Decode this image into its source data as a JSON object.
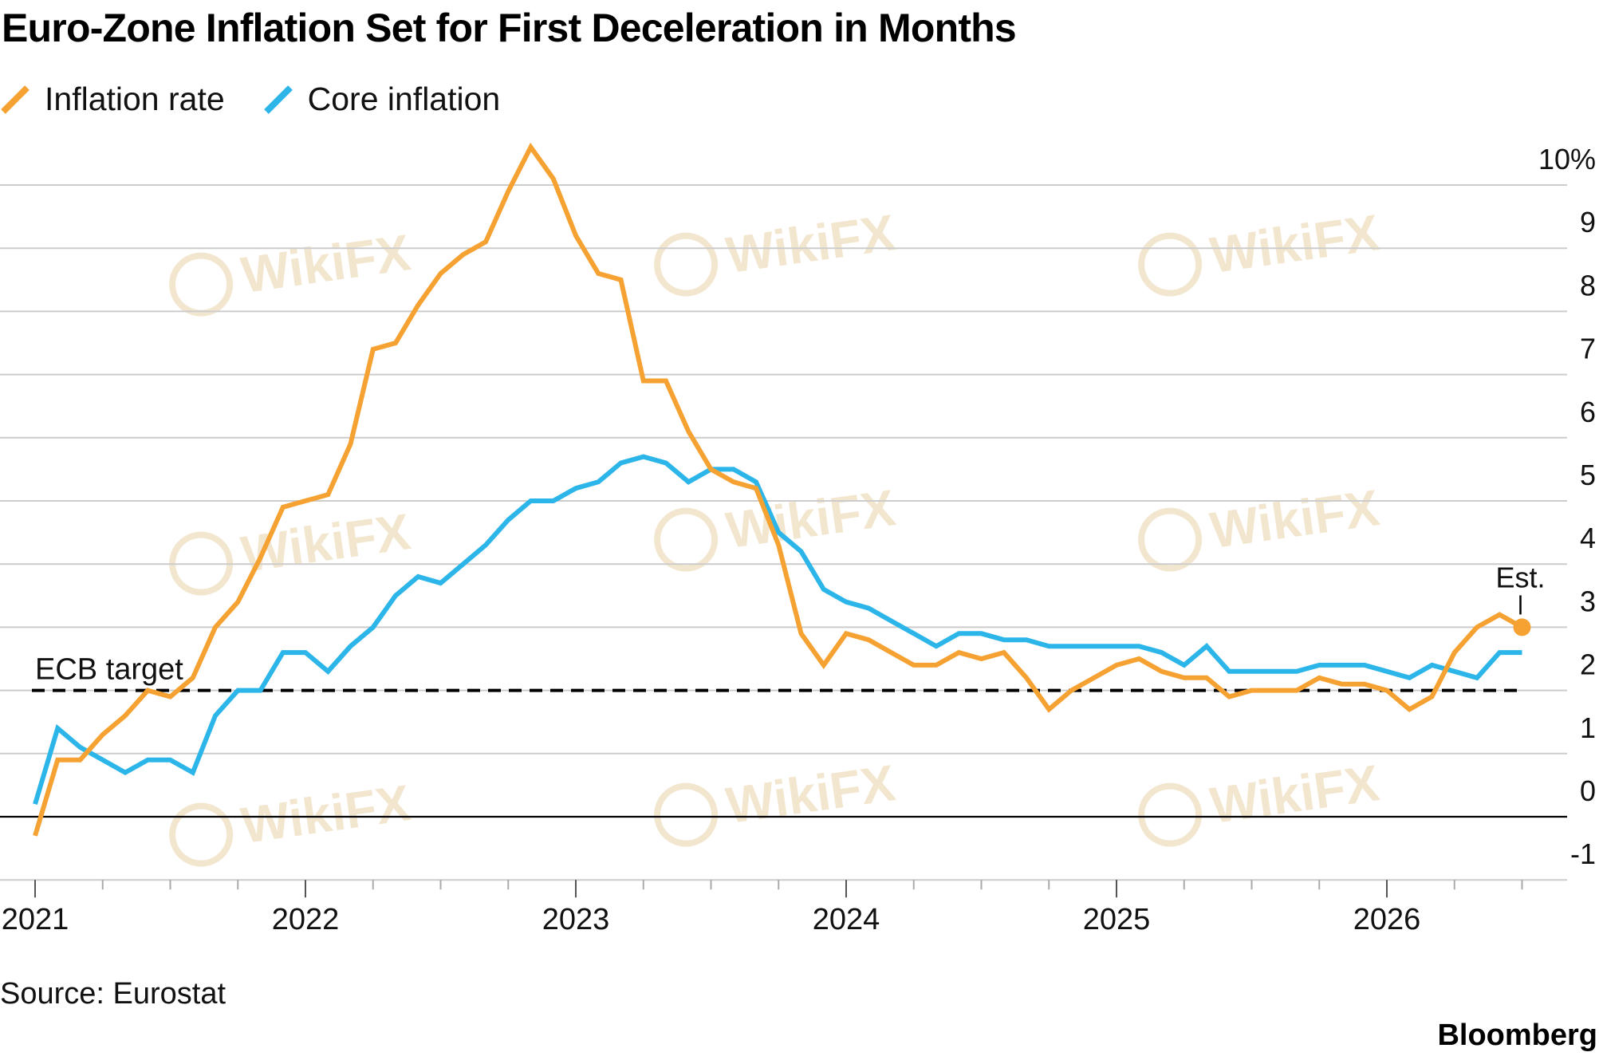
{
  "title": "Euro-Zone Inflation Set for First Deceleration in Months",
  "source": "Source: Eurostat",
  "brand": "Bloomberg",
  "watermark": "WikiFX",
  "colors": {
    "inflation": "#f5a233",
    "core": "#2bb5e8",
    "grid": "#cccccc",
    "axis": "#000000",
    "watermark": "#f3e6cf"
  },
  "chart_data": {
    "type": "line",
    "title": "Euro-Zone Inflation Set for First Deceleration in Months",
    "ylabel": "",
    "xlabel": "",
    "ylim": [
      -1,
      10
    ],
    "y_ticks": [
      "10%",
      "9",
      "8",
      "7",
      "6",
      "5",
      "4",
      "3",
      "2",
      "1",
      "0",
      "-1"
    ],
    "x_ticks": [
      "2021",
      "2022",
      "2023",
      "2024",
      "2025",
      "2026"
    ],
    "x_start": "2021-01",
    "legend_position": "top-left",
    "grid": true,
    "reference_line": {
      "label": "ECB target",
      "value": 2.0,
      "style": "dashed"
    },
    "estimate_label": "Est.",
    "series": [
      {
        "name": "Inflation rate",
        "color": "#f5a233",
        "values": [
          -0.3,
          0.9,
          0.9,
          1.3,
          1.6,
          2.0,
          1.9,
          2.2,
          3.0,
          3.4,
          4.1,
          4.9,
          5.0,
          5.1,
          5.9,
          7.4,
          7.5,
          8.1,
          8.6,
          8.9,
          9.1,
          9.9,
          10.6,
          10.1,
          9.2,
          8.6,
          8.5,
          6.9,
          6.9,
          6.1,
          5.5,
          5.3,
          5.2,
          4.3,
          2.9,
          2.4,
          2.9,
          2.8,
          2.6,
          2.4,
          2.4,
          2.6,
          2.5,
          2.6,
          2.2,
          1.7,
          2.0,
          2.2,
          2.4,
          2.5,
          2.3,
          2.2,
          2.2,
          1.9,
          2.0,
          2.0,
          2.0,
          2.2,
          2.1,
          2.1,
          2.0,
          1.7,
          1.9,
          2.6,
          3.0,
          3.2,
          3.0
        ],
        "estimate_last": true
      },
      {
        "name": "Core inflation",
        "color": "#2bb5e8",
        "values": [
          0.2,
          1.4,
          1.1,
          0.9,
          0.7,
          0.9,
          0.9,
          0.7,
          1.6,
          2.0,
          2.0,
          2.6,
          2.6,
          2.3,
          2.7,
          3.0,
          3.5,
          3.8,
          3.7,
          4.0,
          4.3,
          4.7,
          5.0,
          5.0,
          5.2,
          5.3,
          5.6,
          5.7,
          5.6,
          5.3,
          5.5,
          5.5,
          5.3,
          4.5,
          4.2,
          3.6,
          3.4,
          3.3,
          3.1,
          2.9,
          2.7,
          2.9,
          2.9,
          2.8,
          2.8,
          2.7,
          2.7,
          2.7,
          2.7,
          2.7,
          2.6,
          2.4,
          2.7,
          2.3,
          2.3,
          2.3,
          2.3,
          2.4,
          2.4,
          2.4,
          2.3,
          2.2,
          2.4,
          2.3,
          2.2,
          2.6,
          2.6
        ]
      }
    ]
  }
}
